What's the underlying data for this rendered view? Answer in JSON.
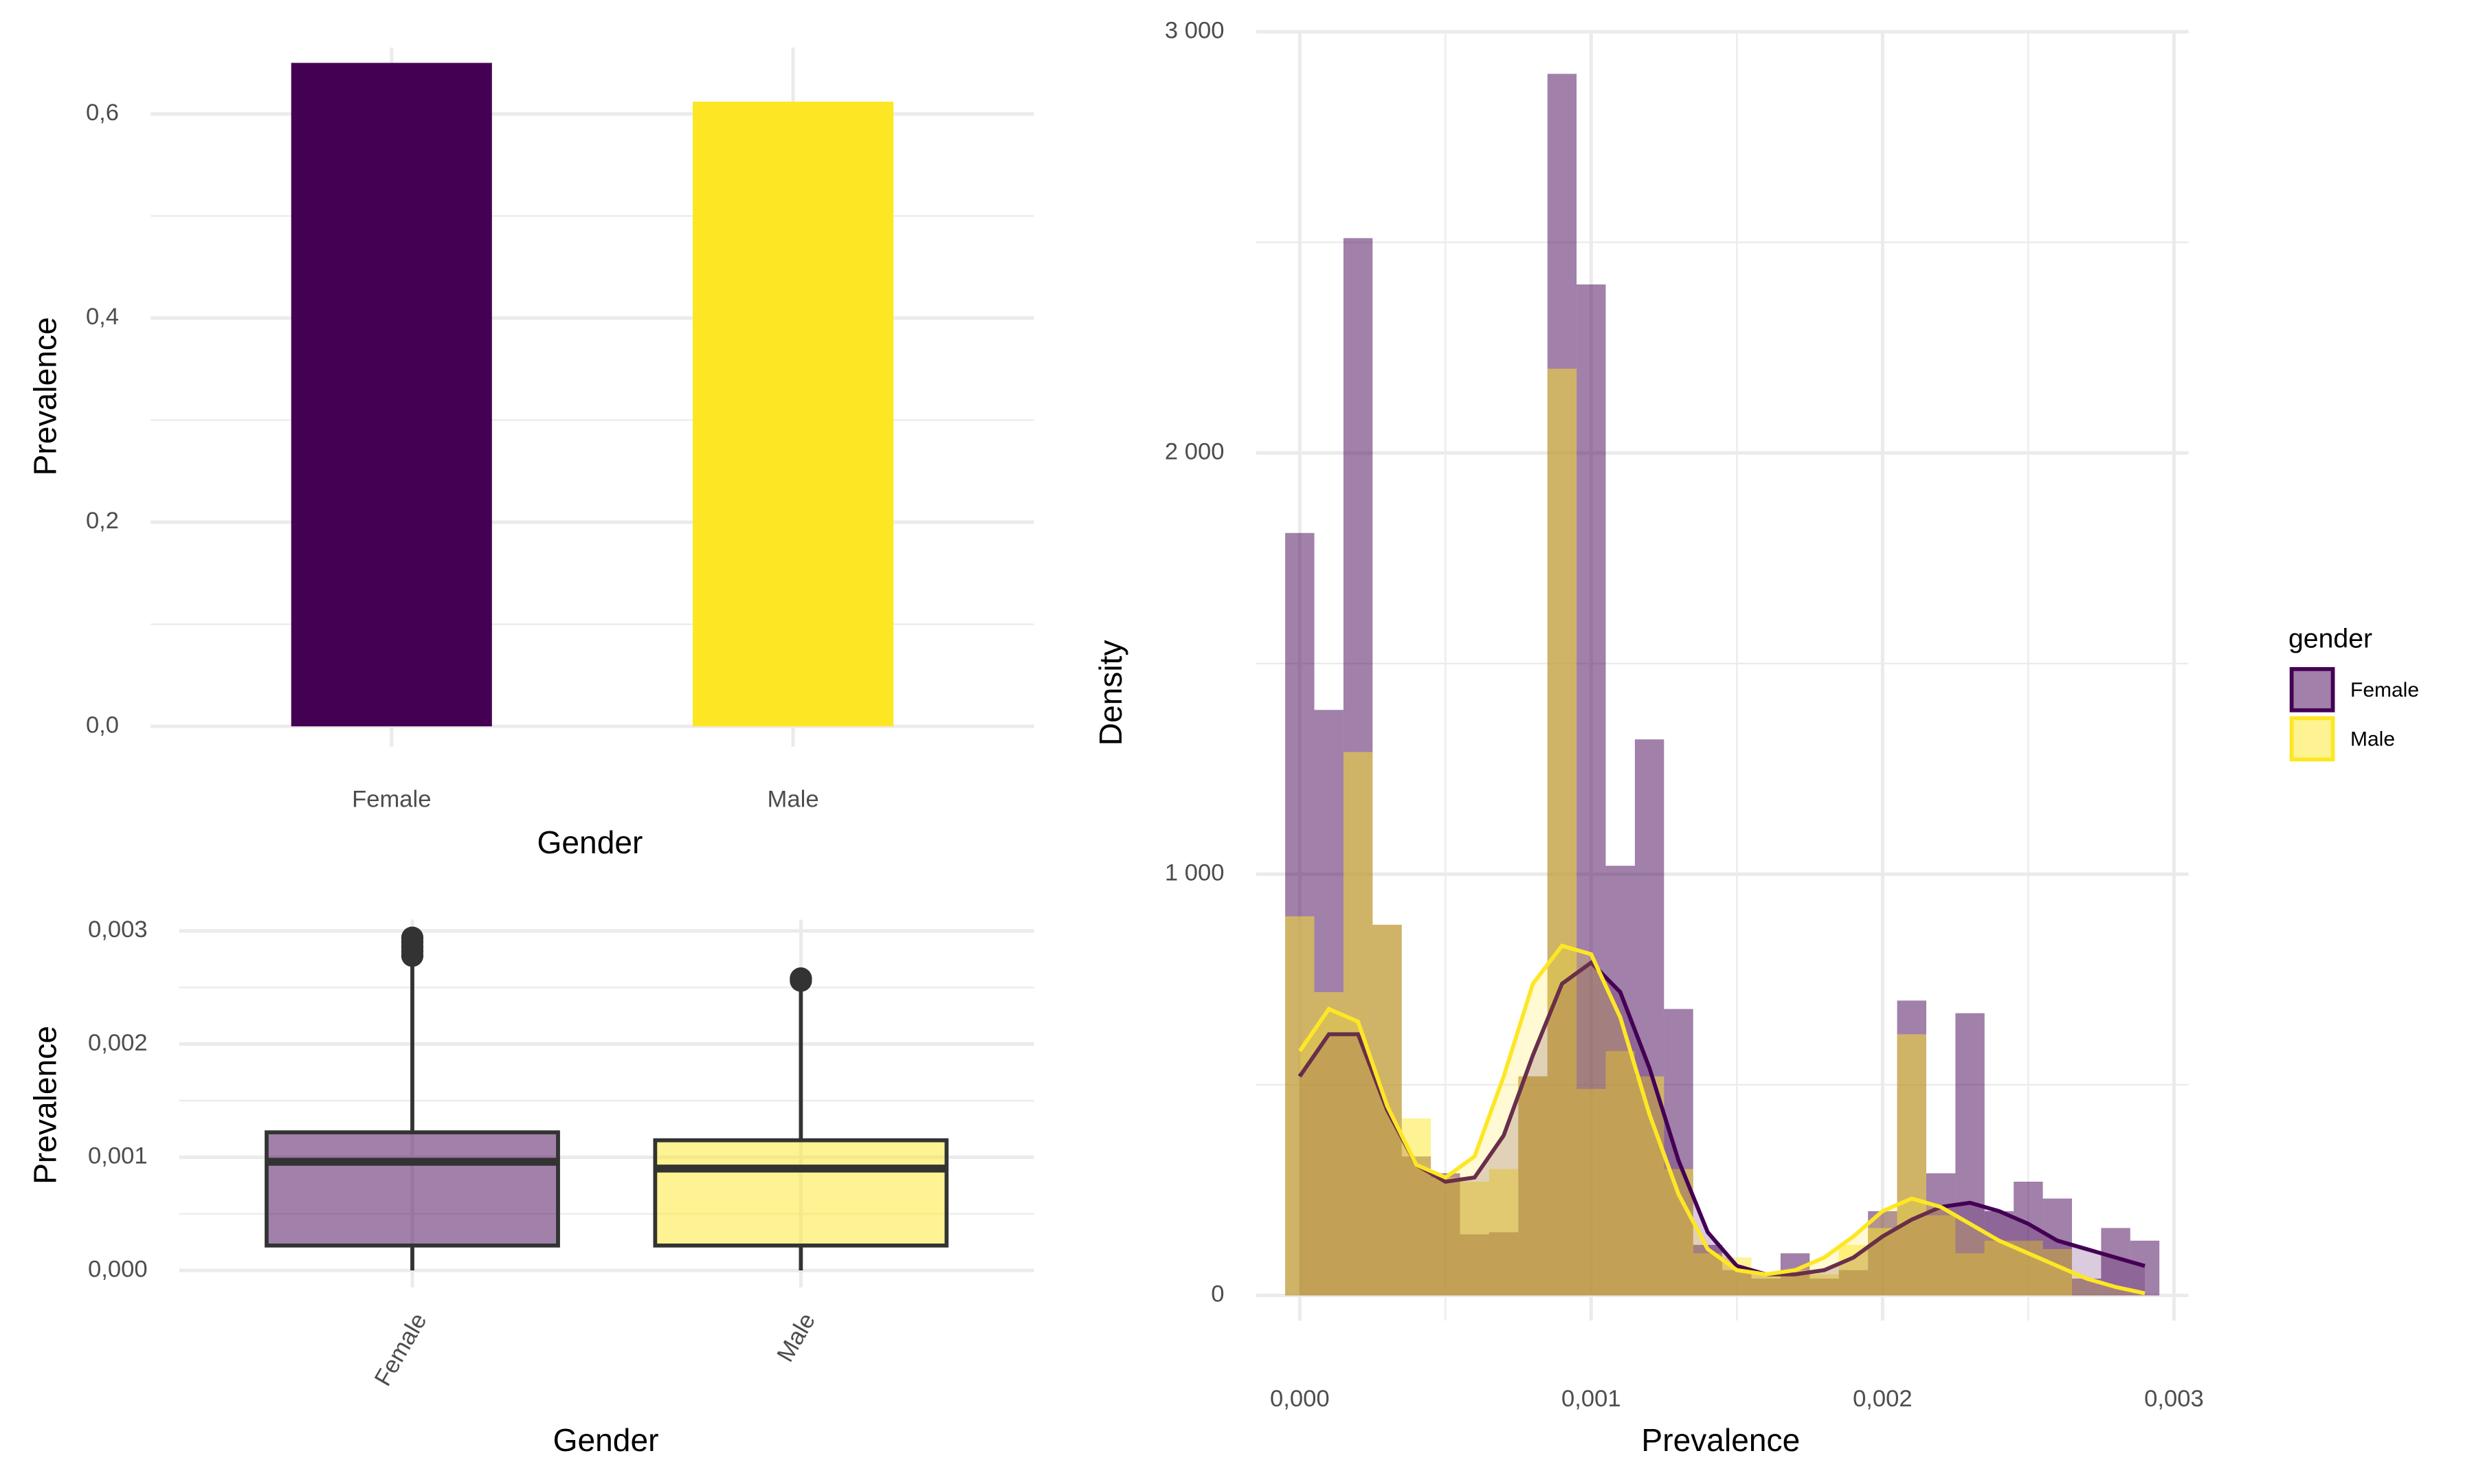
{
  "chart_data": [
    {
      "type": "bar",
      "xlabel": "Gender",
      "ylabel": "Prevalence",
      "categories": [
        "Female",
        "Male"
      ],
      "values": [
        0.65,
        0.612
      ],
      "colors": [
        "#440154",
        "#FDE725"
      ],
      "ylim": [
        -0.02,
        0.665
      ],
      "yticks": [
        {
          "value": 0,
          "label": "0,0"
        },
        {
          "value": 0.2,
          "label": "0,2"
        },
        {
          "value": 0.4,
          "label": "0,4"
        },
        {
          "value": 0.6,
          "label": "0,6"
        }
      ],
      "yminor": [
        0.1,
        0.3,
        0.5
      ],
      "grid": true
    },
    {
      "type": "box",
      "xlabel": "Gender",
      "ylabel": "Prevalence",
      "categories": [
        "Female",
        "Male"
      ],
      "colors": [
        "#440154",
        "#FDE725"
      ],
      "whisker_low": [
        0,
        0
      ],
      "q1": [
        0.00022,
        0.00022
      ],
      "median": [
        0.00096,
        0.0009
      ],
      "q3": [
        0.00122,
        0.00115
      ],
      "whisker_high": [
        0.00275,
        0.0025
      ],
      "outliers": [
        [
          0.00294,
          0.0029,
          0.00286,
          0.00282,
          0.00278
        ],
        [
          0.00258,
          0.00256
        ]
      ],
      "ylim": [
        -0.00015,
        0.0031
      ],
      "yticks": [
        {
          "value": 0,
          "label": "0,000"
        },
        {
          "value": 0.001,
          "label": "0,001"
        },
        {
          "value": 0.002,
          "label": "0,002"
        },
        {
          "value": 0.003,
          "label": "0,003"
        }
      ],
      "yminor": [
        0.0005,
        0.0015,
        0.0025
      ],
      "grid": true
    },
    {
      "type": "histogram",
      "xlabel": "Prevalence",
      "ylabel": "Density",
      "bins": [
        -5e-05,
        5e-05,
        0.00015,
        0.00025,
        0.00035,
        0.00045,
        0.00055,
        0.00065,
        0.00075,
        0.00085,
        0.00095,
        0.00105,
        0.00115,
        0.00125,
        0.00135,
        0.00145,
        0.00155,
        0.00165,
        0.00175,
        0.00185,
        0.00195,
        0.00205,
        0.00215,
        0.00225,
        0.00235,
        0.00245,
        0.00255,
        0.00265,
        0.00275,
        0.00285,
        0.00295
      ],
      "density_x": [
        0,
        0.0001,
        0.0002,
        0.0003,
        0.0004,
        0.0005,
        0.0006,
        0.0007,
        0.0008,
        0.0009,
        0.001,
        0.0011,
        0.0012,
        0.0013,
        0.0014,
        0.0015,
        0.0016,
        0.0017,
        0.0018,
        0.0019,
        0.002,
        0.0021,
        0.0022,
        0.0023,
        0.0024,
        0.0025,
        0.0026,
        0.0027,
        0.0028,
        0.0029
      ],
      "series": [
        {
          "name": "Female",
          "color": "#440154",
          "values": [
            1810,
            1390,
            2510,
            880,
            330,
            290,
            145,
            150,
            520,
            2900,
            2400,
            1020,
            1320,
            680,
            120,
            60,
            40,
            100,
            40,
            60,
            200,
            700,
            290,
            670,
            200,
            270,
            230,
            40,
            160,
            130
          ],
          "density": [
            520,
            620,
            620,
            440,
            310,
            270,
            280,
            380,
            570,
            740,
            790,
            720,
            540,
            320,
            150,
            70,
            50,
            50,
            60,
            90,
            140,
            180,
            210,
            220,
            200,
            170,
            130,
            110,
            90,
            70
          ]
        },
        {
          "name": "Male",
          "color": "#FDE725",
          "values": [
            900,
            720,
            1290,
            880,
            420,
            280,
            270,
            300,
            520,
            2200,
            490,
            580,
            520,
            300,
            100,
            90,
            50,
            60,
            50,
            120,
            160,
            620,
            190,
            100,
            130,
            130,
            110,
            0,
            0,
            0
          ],
          "density": [
            580,
            680,
            650,
            450,
            310,
            280,
            330,
            520,
            740,
            830,
            810,
            660,
            430,
            240,
            110,
            60,
            50,
            60,
            90,
            140,
            200,
            230,
            210,
            170,
            130,
            100,
            70,
            40,
            20,
            5
          ]
        }
      ],
      "xlim": [
        -0.00015,
        0.00305
      ],
      "ylim": [
        -60,
        3000
      ],
      "xticks": [
        {
          "value": 0,
          "label": "0,000"
        },
        {
          "value": 0.001,
          "label": "0,001"
        },
        {
          "value": 0.002,
          "label": "0,002"
        },
        {
          "value": 0.003,
          "label": "0,003"
        }
      ],
      "xminor": [
        0.0005,
        0.0015,
        0.0025
      ],
      "yticks": [
        0,
        {
          "value": 1000,
          "label": "1 000"
        },
        {
          "value": 2000,
          "label": "2 000"
        },
        {
          "value": 3000,
          "label": "3 000"
        }
      ],
      "yminor": [
        500,
        1500,
        2500
      ],
      "grid": true,
      "legend_title": "gender",
      "legend": "right"
    }
  ]
}
